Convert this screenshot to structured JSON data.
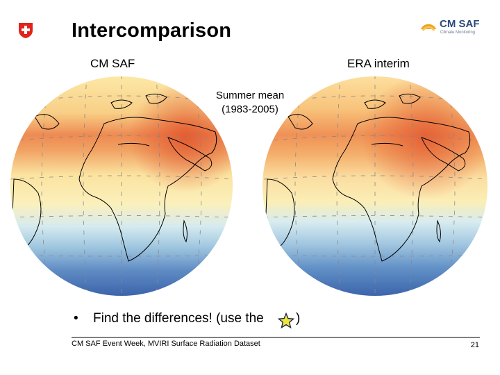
{
  "header": {
    "title": "Intercomparison",
    "brand": {
      "name": "CM SAF",
      "tagline": "Climate Monitoring",
      "color": "#2c4a7c",
      "accent": "#f0a21a"
    },
    "left_logo": "swiss-cross-icon"
  },
  "maps": {
    "left": {
      "label": "CM SAF"
    },
    "right": {
      "label": "ERA interim"
    },
    "note_line1": "Summer mean",
    "note_line2": "(1983-2005)"
  },
  "colors": {
    "hot": "#e8673a",
    "warm": "#f6c37a",
    "mild": "#fbeaa6",
    "cool": "#cfe6ee",
    "cold": "#5a86c0",
    "coldest": "#3b65ad"
  },
  "bullet": {
    "text": "Find the differences! (use the",
    "icon": "star-icon",
    "close": ")"
  },
  "footer": {
    "text": "CM SAF Event Week, MVIRI Surface Radiation Dataset",
    "page": "21"
  }
}
